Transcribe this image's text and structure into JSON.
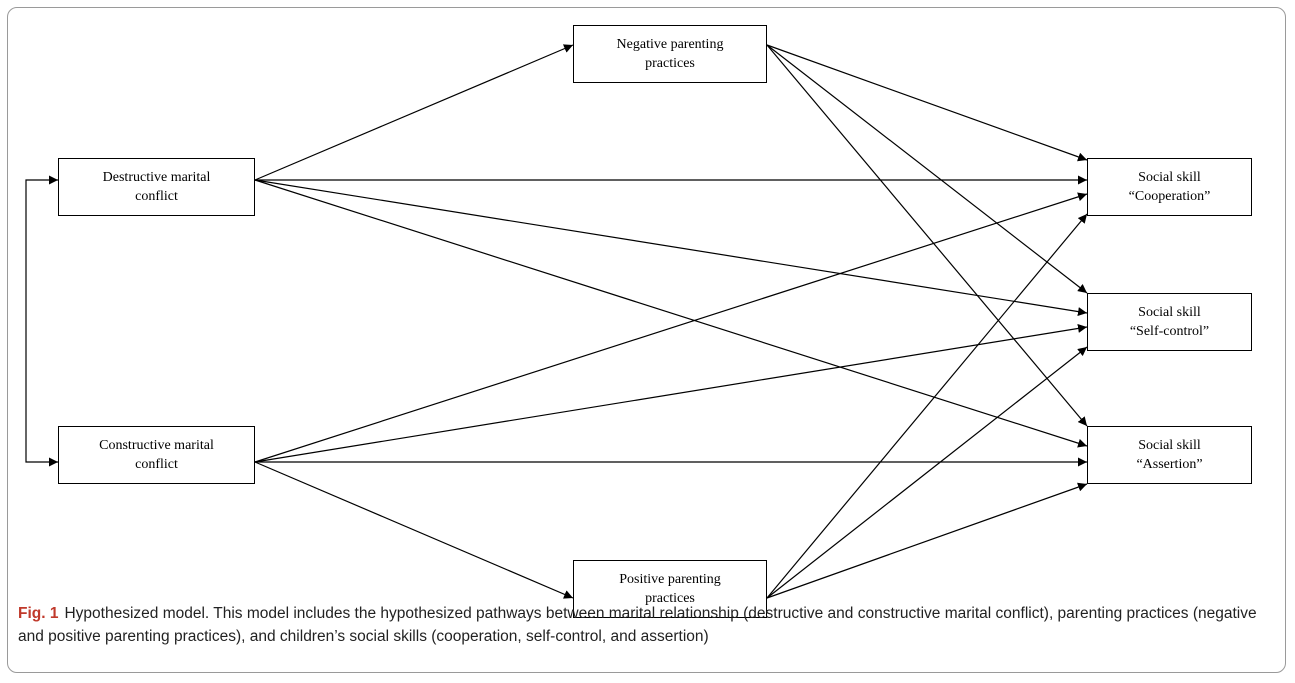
{
  "nodes": {
    "destructive": {
      "lines": [
        "Destructive marital",
        "conflict"
      ]
    },
    "constructive": {
      "lines": [
        "Constructive marital",
        "conflict"
      ]
    },
    "negative": {
      "lines": [
        "Negative parenting",
        "practices"
      ]
    },
    "positive": {
      "lines": [
        "Positive parenting",
        "practices"
      ]
    },
    "cooperation": {
      "lines": [
        "Social skill",
        "“Cooperation”"
      ]
    },
    "selfcontrol": {
      "lines": [
        "Social skill",
        "“Self-control”"
      ]
    },
    "assertion": {
      "lines": [
        "Social skill",
        "“Assertion”"
      ]
    }
  },
  "edges": [
    {
      "from": "destructive",
      "to": "negative"
    },
    {
      "from": "destructive",
      "to": "cooperation"
    },
    {
      "from": "destructive",
      "to": "selfcontrol"
    },
    {
      "from": "destructive",
      "to": "assertion"
    },
    {
      "from": "constructive",
      "to": "cooperation"
    },
    {
      "from": "constructive",
      "to": "selfcontrol"
    },
    {
      "from": "constructive",
      "to": "assertion"
    },
    {
      "from": "constructive",
      "to": "positive"
    },
    {
      "from": "negative",
      "to": "cooperation"
    },
    {
      "from": "negative",
      "to": "selfcontrol"
    },
    {
      "from": "negative",
      "to": "assertion"
    },
    {
      "from": "positive",
      "to": "cooperation"
    },
    {
      "from": "positive",
      "to": "selfcontrol"
    },
    {
      "from": "positive",
      "to": "assertion"
    }
  ],
  "correlation": {
    "a": "destructive",
    "b": "constructive"
  },
  "caption": {
    "label": "Fig. 1",
    "text": "Hypothesized model. This model includes the hypothesized pathways between marital relationship (destructive and constructive marital conflict), parenting practices (negative and positive parenting practices), and children’s social skills (cooperation, self-control, and assertion)"
  }
}
